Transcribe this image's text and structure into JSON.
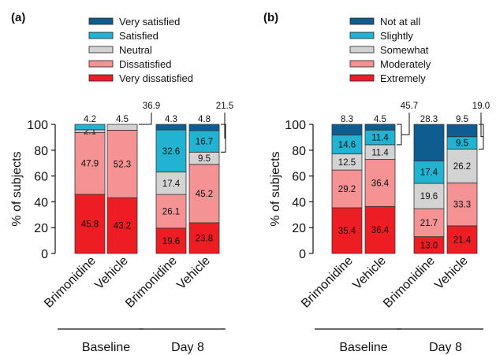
{
  "colors": {
    "top": "#0f5c91",
    "second": "#22b3d2",
    "middle": "#d3d3d3",
    "fourth": "#f49294",
    "bottom": "#ee1d23"
  },
  "chart_data": [
    {
      "type": "bar",
      "stacked": true,
      "panel_label": "(a)",
      "ylabel": "% of subjects",
      "ylim": [
        0,
        100
      ],
      "yticks": [
        0,
        20,
        40,
        60,
        80,
        100
      ],
      "categories": [
        "Brimonidine",
        "Vehicle",
        "Brimonidine",
        "Vehicle"
      ],
      "groups": [
        {
          "label": "Baseline",
          "categories": [
            0,
            1
          ]
        },
        {
          "label": "Day 8",
          "categories": [
            2,
            3
          ]
        }
      ],
      "legend_placement": "top",
      "series": [
        {
          "name": "Very dissatisfied",
          "color_key": "bottom",
          "values": [
            45.8,
            43.2,
            19.6,
            23.8
          ],
          "labels": [
            "45.8",
            "43.2",
            "19.6",
            "23.8"
          ]
        },
        {
          "name": "Dissatisfied",
          "color_key": "fourth",
          "values": [
            47.9,
            52.3,
            26.1,
            45.2
          ],
          "labels": [
            "47.9",
            "52.3",
            "26.1",
            "45.2"
          ]
        },
        {
          "name": "Neutral",
          "color_key": "middle",
          "values": [
            2.1,
            4.5,
            17.4,
            9.5
          ],
          "labels": [
            "2.1",
            "",
            "17.4",
            "9.5"
          ]
        },
        {
          "name": "Satisfied",
          "color_key": "second",
          "values": [
            4.2,
            0,
            32.6,
            16.7
          ],
          "labels": [
            "",
            "",
            "32.6",
            "16.7"
          ]
        },
        {
          "name": "Very satisfied",
          "color_key": "top",
          "values": [
            0,
            0,
            4.3,
            4.8
          ],
          "labels": [
            "",
            "",
            "",
            ""
          ]
        }
      ],
      "top_labels": [
        "4.2",
        "4.5",
        "4.3",
        "4.8"
      ],
      "brackets": [
        "36.9",
        "21.5"
      ]
    },
    {
      "type": "bar",
      "stacked": true,
      "panel_label": "(b)",
      "ylabel": "% of subjects",
      "ylim": [
        0,
        100
      ],
      "yticks": [
        0,
        20,
        40,
        60,
        80,
        100
      ],
      "categories": [
        "Brimonidine",
        "Vehicle",
        "Brimonidine",
        "Vehicle"
      ],
      "groups": [
        {
          "label": "Baseline",
          "categories": [
            0,
            1
          ]
        },
        {
          "label": "Day 8",
          "categories": [
            2,
            3
          ]
        }
      ],
      "legend_placement": "top",
      "series": [
        {
          "name": "Extremely",
          "color_key": "bottom",
          "values": [
            35.4,
            36.4,
            13.0,
            21.4
          ],
          "labels": [
            "35.4",
            "36.4",
            "13.0",
            "21.4"
          ]
        },
        {
          "name": "Moderately",
          "color_key": "fourth",
          "values": [
            29.2,
            36.4,
            21.7,
            33.3
          ],
          "labels": [
            "29.2",
            "36.4",
            "21.7",
            "33.3"
          ]
        },
        {
          "name": "Somewhat",
          "color_key": "middle",
          "values": [
            12.5,
            11.4,
            19.6,
            26.2
          ],
          "labels": [
            "12.5",
            "11.4",
            "19.6",
            "26.2"
          ]
        },
        {
          "name": "Slightly",
          "color_key": "second",
          "values": [
            14.6,
            11.4,
            17.4,
            9.5
          ],
          "labels": [
            "14.6",
            "11.4",
            "17.4",
            "9.5"
          ]
        },
        {
          "name": "Not at all",
          "color_key": "top",
          "values": [
            8.3,
            4.5,
            28.3,
            9.5
          ],
          "labels": [
            "",
            "",
            "",
            ""
          ]
        }
      ],
      "top_labels": [
        "8.3",
        "4.5",
        "28.3",
        "9.5"
      ],
      "brackets": [
        "45.7",
        "19.0"
      ]
    }
  ]
}
